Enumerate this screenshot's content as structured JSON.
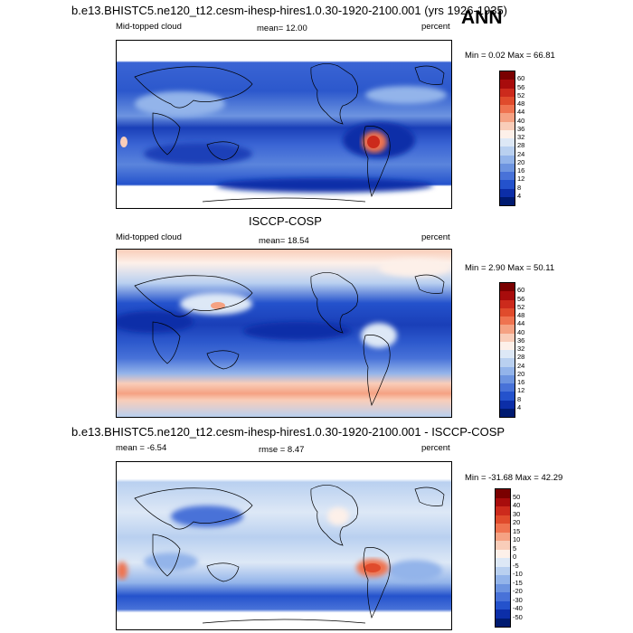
{
  "badge": "ANN",
  "panels": [
    {
      "title": "b.e13.BHISTC5.ne120_t12.cesm-ihesp-hires1.0.30-1920-2100.001 (yrs 1926-1935)",
      "left_label": "Mid-topped cloud",
      "center_label": "mean=  12.00",
      "units": "percent",
      "minmax": "Min =   0.02 Max =  66.81",
      "colorbar_labels": [
        "60",
        "56",
        "52",
        "48",
        "44",
        "40",
        "36",
        "32",
        "28",
        "24",
        "20",
        "16",
        "12",
        "8",
        "4"
      ]
    },
    {
      "title": "ISCCP-COSP",
      "left_label": "Mid-topped cloud",
      "center_label": "mean=  18.54",
      "units": "percent",
      "minmax": "Min =   2.90 Max =  50.11",
      "colorbar_labels": [
        "60",
        "56",
        "52",
        "48",
        "44",
        "40",
        "36",
        "32",
        "28",
        "24",
        "20",
        "16",
        "12",
        "8",
        "4"
      ]
    },
    {
      "title": "b.e13.BHISTC5.ne120_t12.cesm-ihesp-hires1.0.30-1920-2100.001 - ISCCP-COSP",
      "left_label": "mean =  -6.54",
      "center_label": "rmse =   8.47",
      "units": "percent",
      "minmax": "Min = -31.68 Max =  42.29",
      "colorbar_labels": [
        "50",
        "40",
        "30",
        "20",
        "15",
        "10",
        "5",
        "0",
        "-5",
        "-10",
        "-15",
        "-20",
        "-30",
        "-40",
        "-50"
      ]
    }
  ],
  "colors": {
    "abs_scale": [
      "#7a0000",
      "#a80c0c",
      "#cc2a1c",
      "#e04b2c",
      "#ef7350",
      "#f5a283",
      "#f9cdb9",
      "#fdf0e9",
      "#dde8f6",
      "#b9d0f0",
      "#93b4ea",
      "#6d94e0",
      "#4872d8",
      "#2452cc",
      "#0c2ea8",
      "#001a70"
    ],
    "diff_scale": [
      "#7a0000",
      "#a80c0c",
      "#cc2a1c",
      "#e04b2c",
      "#ef7350",
      "#f5a283",
      "#f9cdb9",
      "#fdf0e9",
      "#dde8f6",
      "#b9d0f0",
      "#93b4ea",
      "#6d94e0",
      "#4872d8",
      "#2452cc",
      "#0c2ea8",
      "#001a70"
    ]
  }
}
